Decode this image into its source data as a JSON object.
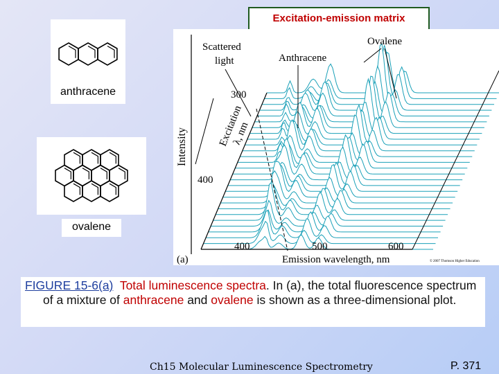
{
  "header": {
    "title": "Excitation-emission matrix"
  },
  "structures": [
    {
      "label": "anthracene"
    },
    {
      "label": "ovalene"
    }
  ],
  "figure": {
    "annotations": [
      "Scattered",
      "light",
      "Anthracene",
      "Ovalene"
    ],
    "y_axis_label": "Intensity",
    "excitation_label": [
      "Excitation",
      "λ, nm"
    ],
    "excitation_ticks": [
      "300",
      "400"
    ],
    "emission_ticks": [
      "400",
      "500",
      "600"
    ],
    "emission_label": "Emission wavelength, nm",
    "panel": "(a)",
    "copyright": "© 2007 Thomson Higher Education"
  },
  "caption": {
    "parts": [
      "FIGURE 15-6(a)",
      "Total luminescence spectra",
      ". In (a), the total fluorescence spectrum of a mixture of ",
      "anthracene",
      " and ",
      "ovalene",
      " is shown as a three-dimensional plot."
    ]
  },
  "footer": {
    "left": "Ch15 Molecular Luminescence Spectrometry",
    "right": "P. 371"
  }
}
